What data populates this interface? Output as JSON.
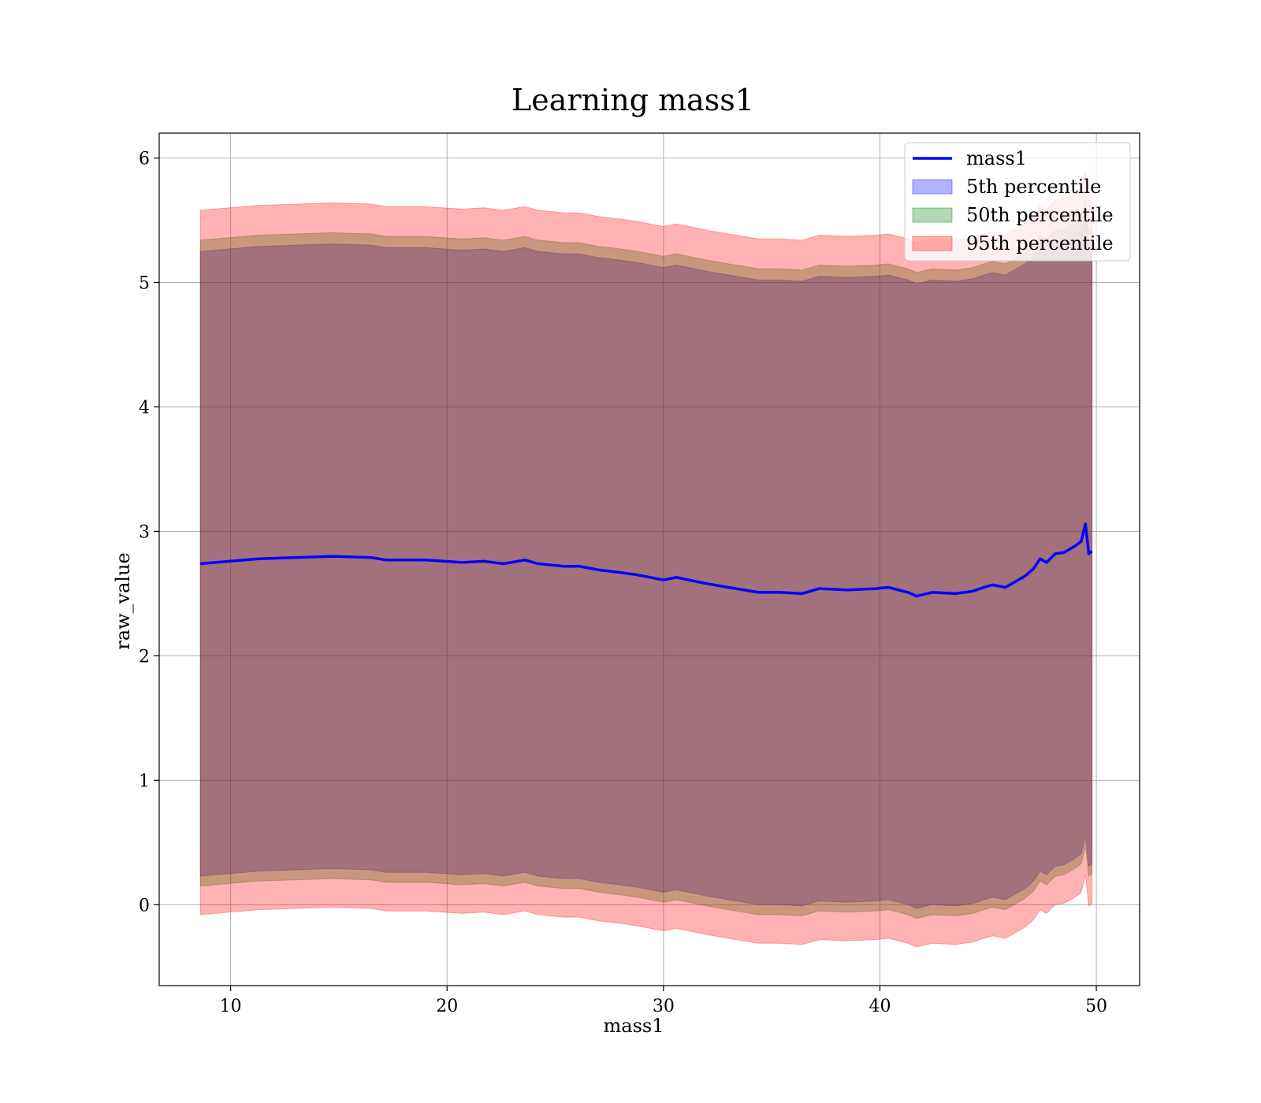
{
  "chart_data": {
    "type": "area",
    "title": "Learning mass1",
    "xlabel": "mass1",
    "ylabel": "raw_value",
    "xlim": [
      6.7,
      52
    ],
    "ylim": [
      -0.65,
      6.2
    ],
    "xticks": [
      10,
      20,
      30,
      40,
      50
    ],
    "yticks": [
      0,
      1,
      2,
      3,
      4,
      5,
      6
    ],
    "xtick_labels": [
      "10",
      "20",
      "30",
      "40",
      "50"
    ],
    "ytick_labels": [
      "0",
      "1",
      "2",
      "3",
      "4",
      "5",
      "6"
    ],
    "grid": true,
    "legend_position": "top-right",
    "x": [
      8.6,
      11.3,
      14.7,
      16.5,
      17.2,
      19.0,
      20.7,
      21.7,
      22.6,
      23.6,
      24.2,
      25.4,
      26.1,
      27.0,
      28.0,
      28.8,
      30.0,
      30.6,
      32.0,
      33.0,
      34.4,
      35.4,
      36.4,
      37.2,
      38.5,
      39.8,
      40.4,
      41.3,
      41.7,
      42.4,
      43.5,
      44.3,
      44.8,
      45.2,
      45.8,
      46.3,
      46.7,
      47.1,
      47.4,
      47.7,
      48.1,
      48.5,
      49.0,
      49.3,
      49.5,
      49.65,
      49.8
    ],
    "series": [
      {
        "name": "mass1",
        "values": [
          2.74,
          2.78,
          2.8,
          2.79,
          2.77,
          2.77,
          2.75,
          2.76,
          2.74,
          2.77,
          2.74,
          2.72,
          2.72,
          2.69,
          2.67,
          2.65,
          2.61,
          2.63,
          2.58,
          2.55,
          2.51,
          2.51,
          2.5,
          2.54,
          2.53,
          2.54,
          2.55,
          2.51,
          2.48,
          2.51,
          2.5,
          2.52,
          2.55,
          2.57,
          2.55,
          2.6,
          2.64,
          2.7,
          2.78,
          2.75,
          2.82,
          2.83,
          2.88,
          2.92,
          3.06,
          2.82,
          2.84
        ]
      }
    ],
    "bands": [
      {
        "name": "5th percentile",
        "color": "#0000ff",
        "alpha": 0.3,
        "lower": [
          0.23,
          0.27,
          0.29,
          0.28,
          0.26,
          0.26,
          0.24,
          0.25,
          0.23,
          0.26,
          0.23,
          0.21,
          0.21,
          0.18,
          0.16,
          0.14,
          0.1,
          0.12,
          0.07,
          0.04,
          0.0,
          0.0,
          -0.01,
          0.03,
          0.02,
          0.03,
          0.04,
          0.0,
          -0.03,
          0.0,
          -0.01,
          0.01,
          0.04,
          0.06,
          0.04,
          0.09,
          0.13,
          0.19,
          0.27,
          0.24,
          0.31,
          0.32,
          0.37,
          0.41,
          0.55,
          0.31,
          0.33
        ],
        "upper": [
          5.25,
          5.29,
          5.31,
          5.3,
          5.28,
          5.28,
          5.26,
          5.27,
          5.25,
          5.28,
          5.25,
          5.23,
          5.23,
          5.2,
          5.18,
          5.16,
          5.12,
          5.14,
          5.09,
          5.06,
          5.02,
          5.02,
          5.01,
          5.05,
          5.04,
          5.05,
          5.06,
          5.02,
          4.99,
          5.02,
          5.01,
          5.03,
          5.06,
          5.08,
          5.06,
          5.11,
          5.15,
          5.21,
          5.29,
          5.26,
          5.33,
          5.34,
          5.39,
          5.43,
          5.57,
          5.33,
          5.35
        ]
      },
      {
        "name": "50th percentile",
        "color": "#008000",
        "alpha": 0.3,
        "lower": [
          0.15,
          0.19,
          0.21,
          0.2,
          0.18,
          0.18,
          0.16,
          0.17,
          0.15,
          0.18,
          0.15,
          0.13,
          0.13,
          0.1,
          0.08,
          0.06,
          0.02,
          0.04,
          -0.01,
          -0.04,
          -0.08,
          -0.08,
          -0.09,
          -0.05,
          -0.06,
          -0.05,
          -0.04,
          -0.08,
          -0.11,
          -0.08,
          -0.09,
          -0.07,
          -0.04,
          -0.02,
          -0.04,
          0.01,
          0.05,
          0.11,
          0.19,
          0.16,
          0.23,
          0.24,
          0.29,
          0.33,
          0.47,
          0.23,
          0.25
        ],
        "upper": [
          5.34,
          5.38,
          5.4,
          5.39,
          5.37,
          5.37,
          5.35,
          5.36,
          5.34,
          5.37,
          5.34,
          5.32,
          5.32,
          5.29,
          5.27,
          5.25,
          5.21,
          5.23,
          5.18,
          5.15,
          5.11,
          5.11,
          5.1,
          5.14,
          5.13,
          5.14,
          5.15,
          5.11,
          5.08,
          5.11,
          5.1,
          5.12,
          5.15,
          5.17,
          5.15,
          5.2,
          5.24,
          5.3,
          5.38,
          5.35,
          5.42,
          5.43,
          5.48,
          5.52,
          5.66,
          5.42,
          5.44
        ]
      },
      {
        "name": "95th percentile",
        "color": "#ff0000",
        "alpha": 0.3,
        "lower": [
          -0.08,
          -0.04,
          -0.02,
          -0.03,
          -0.05,
          -0.05,
          -0.07,
          -0.06,
          -0.08,
          -0.05,
          -0.08,
          -0.1,
          -0.1,
          -0.13,
          -0.15,
          -0.17,
          -0.21,
          -0.19,
          -0.24,
          -0.27,
          -0.31,
          -0.31,
          -0.32,
          -0.28,
          -0.29,
          -0.28,
          -0.27,
          -0.31,
          -0.34,
          -0.31,
          -0.32,
          -0.3,
          -0.27,
          -0.25,
          -0.27,
          -0.22,
          -0.18,
          -0.12,
          -0.04,
          -0.07,
          0.0,
          0.01,
          0.06,
          0.1,
          0.24,
          -0.01,
          0.01
        ],
        "upper": [
          5.58,
          5.62,
          5.64,
          5.63,
          5.61,
          5.61,
          5.59,
          5.6,
          5.58,
          5.61,
          5.58,
          5.56,
          5.56,
          5.53,
          5.51,
          5.49,
          5.45,
          5.47,
          5.42,
          5.39,
          5.35,
          5.35,
          5.34,
          5.38,
          5.37,
          5.38,
          5.39,
          5.35,
          5.32,
          5.35,
          5.34,
          5.36,
          5.39,
          5.41,
          5.39,
          5.44,
          5.48,
          5.54,
          5.62,
          5.59,
          5.66,
          5.67,
          5.72,
          5.76,
          5.9,
          5.66,
          5.68
        ]
      }
    ],
    "line_color": "#0000ff",
    "legend": [
      "mass1",
      "5th percentile",
      "50th percentile",
      "95th percentile"
    ]
  }
}
